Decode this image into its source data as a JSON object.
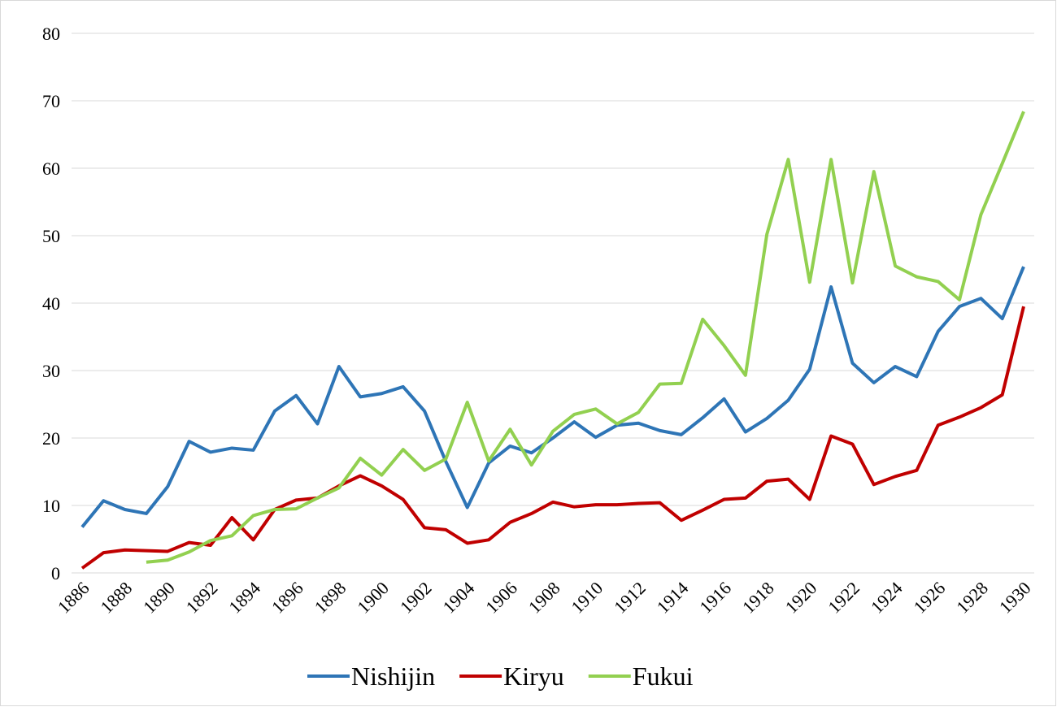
{
  "chart_data": {
    "type": "line",
    "x": [
      1886,
      1887,
      1888,
      1889,
      1890,
      1891,
      1892,
      1893,
      1894,
      1895,
      1896,
      1897,
      1898,
      1899,
      1900,
      1901,
      1902,
      1903,
      1904,
      1905,
      1906,
      1907,
      1908,
      1909,
      1910,
      1911,
      1912,
      1913,
      1914,
      1915,
      1916,
      1917,
      1918,
      1919,
      1920,
      1921,
      1922,
      1923,
      1924,
      1925,
      1926,
      1927,
      1928,
      1929,
      1930
    ],
    "xlim": [
      1886,
      1930
    ],
    "xticks": [
      1886,
      1888,
      1890,
      1892,
      1894,
      1896,
      1898,
      1900,
      1902,
      1904,
      1906,
      1908,
      1910,
      1912,
      1914,
      1916,
      1918,
      1920,
      1922,
      1924,
      1926,
      1928,
      1930
    ],
    "ylim": [
      0,
      80
    ],
    "yticks": [
      0,
      10,
      20,
      30,
      40,
      50,
      60,
      70,
      80
    ],
    "grid": true,
    "legend": "bottom",
    "series": [
      {
        "name": "Nishijin",
        "color": "#2e75b6",
        "values": [
          6.8,
          10.7,
          9.4,
          8.8,
          12.8,
          19.5,
          17.9,
          18.5,
          18.2,
          24.0,
          26.3,
          22.1,
          30.6,
          26.1,
          26.6,
          27.6,
          24.0,
          16.5,
          9.7,
          16.3,
          18.8,
          17.8,
          20.0,
          22.4,
          20.1,
          21.9,
          22.2,
          21.1,
          20.5,
          23.0,
          25.8,
          20.9,
          22.9,
          25.6,
          30.2,
          42.4,
          31.1,
          28.2,
          30.6,
          29.1,
          35.8,
          39.5,
          40.7,
          37.7,
          45.4
        ]
      },
      {
        "name": "Kiryu",
        "color": "#c00000",
        "values": [
          0.7,
          3.0,
          3.4,
          3.3,
          3.2,
          4.5,
          4.1,
          8.2,
          4.9,
          9.4,
          10.8,
          11.1,
          12.9,
          14.4,
          12.9,
          10.9,
          6.7,
          6.4,
          4.4,
          4.9,
          7.5,
          8.8,
          10.5,
          9.8,
          10.1,
          10.1,
          10.3,
          10.4,
          7.8,
          9.3,
          10.9,
          11.1,
          13.6,
          13.9,
          10.9,
          20.3,
          19.1,
          13.1,
          14.3,
          15.2,
          21.9,
          23.1,
          24.5,
          26.4,
          39.5
        ]
      },
      {
        "name": "Fukui",
        "color": "#92d050",
        "values": [
          null,
          null,
          null,
          1.6,
          1.9,
          3.1,
          4.8,
          5.5,
          8.5,
          9.4,
          9.5,
          11.1,
          12.6,
          17.0,
          14.5,
          18.3,
          15.2,
          16.9,
          25.3,
          16.6,
          21.3,
          16.0,
          21.0,
          23.5,
          24.3,
          22.1,
          23.8,
          28.0,
          28.1,
          37.6,
          33.7,
          29.3,
          50.2,
          61.3,
          43.1,
          61.3,
          43.0,
          59.5,
          45.5,
          43.9,
          43.2,
          40.5,
          53.1,
          60.7,
          68.4
        ]
      }
    ]
  }
}
